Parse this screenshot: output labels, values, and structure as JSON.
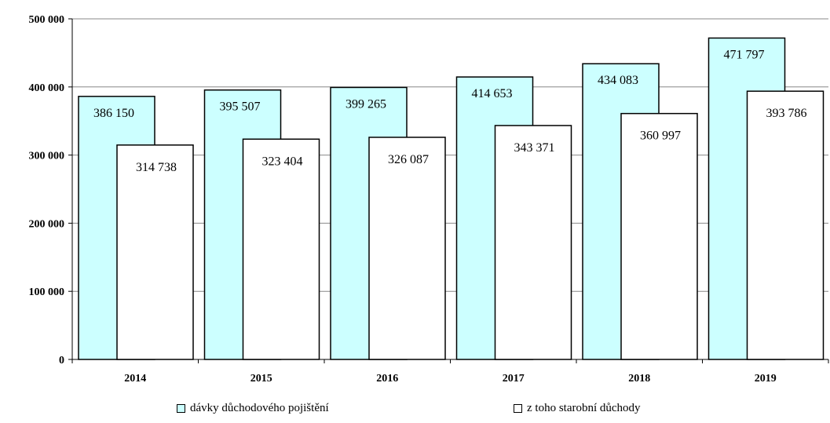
{
  "chart_data": {
    "type": "bar",
    "categories": [
      "2014",
      "2015",
      "2016",
      "2017",
      "2018",
      "2019"
    ],
    "series": [
      {
        "name": "dávky důchodového pojištění",
        "color": "#ccffff",
        "values": [
          386150,
          395507,
          399265,
          414653,
          434083,
          471797
        ],
        "labels": [
          "386 150",
          "395 507",
          "399 265",
          "414 653",
          "434 083",
          "471 797"
        ]
      },
      {
        "name": "z toho starobní důchody",
        "color": "#ffffff",
        "values": [
          314738,
          323404,
          326087,
          343371,
          360997,
          393786
        ],
        "labels": [
          "314 738",
          "323 404",
          "326 087",
          "343 371",
          "360 997",
          "393 786"
        ]
      }
    ],
    "ylim": [
      0,
      500000
    ],
    "yticks": [
      0,
      100000,
      200000,
      300000,
      400000,
      500000
    ],
    "ytick_labels": [
      "0",
      "100 000",
      "200 000",
      "300 000",
      "400 000",
      "500 000"
    ],
    "grid": true,
    "legend_position": "bottom"
  }
}
